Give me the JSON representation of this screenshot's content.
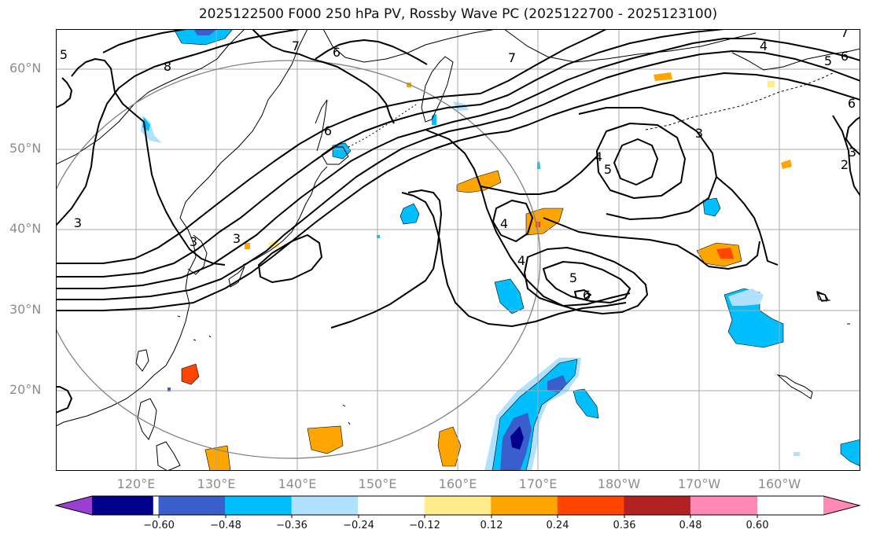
{
  "title": "2025122500 F000 250 hPa PV, Rossby Wave PC (2025122700 - 2025123100)",
  "lat_labels": [
    "60°N",
    "50°N",
    "40°N",
    "30°N",
    "20°N"
  ],
  "lon_labels": [
    "120°E",
    "130°E",
    "140°E",
    "150°E",
    "160°E",
    "170°E",
    "180°W",
    "170°W",
    "160°W"
  ],
  "contour_labels": [
    "5",
    "8",
    "7",
    "6",
    "7",
    "6",
    "4",
    "5",
    "6",
    "7",
    "3",
    "3",
    "4",
    "5",
    "4",
    "4",
    "5",
    "6",
    "3",
    "2",
    "6",
    "3",
    "3"
  ],
  "colorbar": {
    "ticks": [
      "−0.60",
      "−0.48",
      "−0.36",
      "−0.24",
      "−0.12",
      "0.12",
      "0.24",
      "0.36",
      "0.48",
      "0.60"
    ],
    "colors": [
      "#9a3fd1",
      "#00008b",
      "#3a5fcd",
      "#00bfff",
      "#b0e2ff",
      "#ffffff",
      "#ffec8b",
      "#ffa500",
      "#ff4500",
      "#b22222",
      "#ff88b4",
      "#ff88b4"
    ]
  }
}
